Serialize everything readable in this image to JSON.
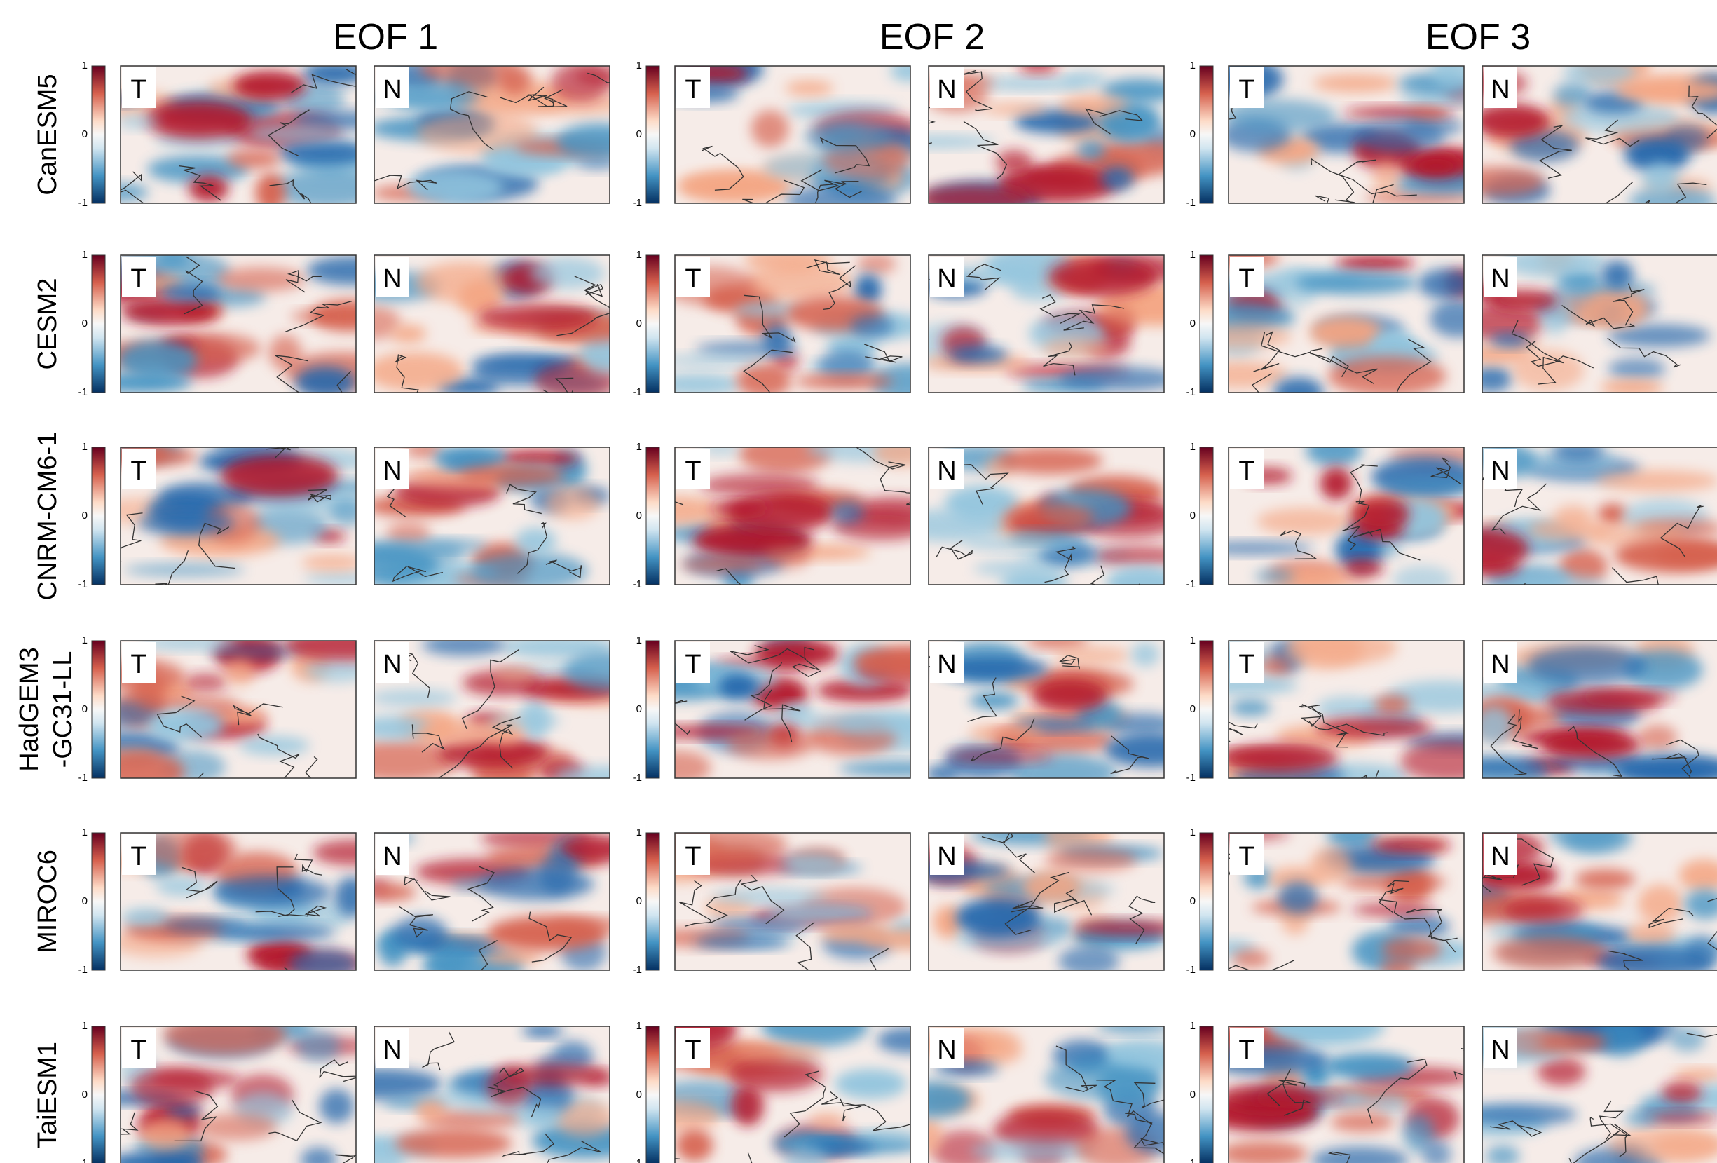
{
  "columns": [
    "EOF 1",
    "EOF 2",
    "EOF 3"
  ],
  "rows": [
    {
      "label": [
        "CanESM5"
      ]
    },
    {
      "label": [
        "CESM2"
      ]
    },
    {
      "label": [
        "CNRM-CM6-1"
      ]
    },
    {
      "label": [
        "HadGEM3",
        "-GC31-LL"
      ]
    },
    {
      "label": [
        "MIROC6"
      ]
    },
    {
      "label": [
        "TaiESM1"
      ]
    }
  ],
  "panel_labels": [
    "T",
    "N"
  ],
  "colorbar_ticks": [
    1,
    0,
    -1
  ]
}
